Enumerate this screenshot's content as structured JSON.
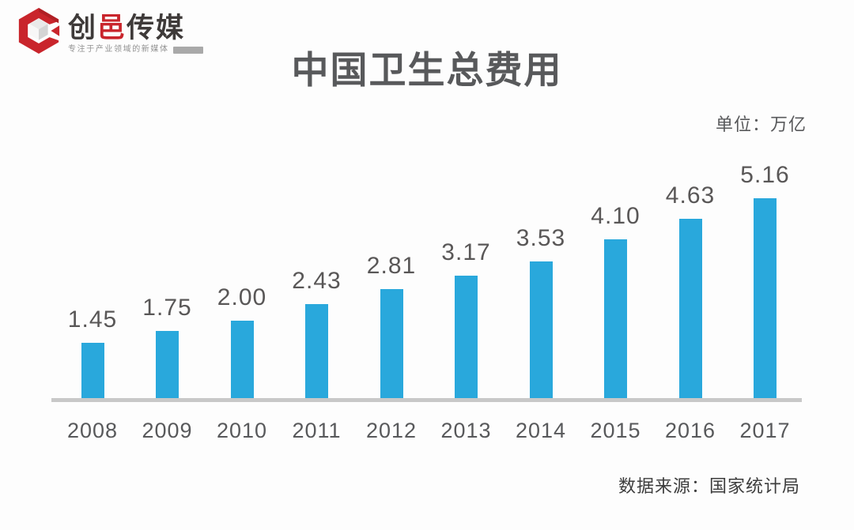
{
  "header": {
    "logo": {
      "part1": "创",
      "part2": "邑",
      "part3": "传媒",
      "accent_color": "#c9252c",
      "text_color": "#3e3a39",
      "tagline": "专注于产业领域的新媒体"
    },
    "title": "中国卫生总费用",
    "unit_label": "单位：万亿"
  },
  "chart_data": {
    "type": "bar",
    "title": "中国卫生总费用",
    "unit": "万亿",
    "categories": [
      "2008",
      "2009",
      "2010",
      "2011",
      "2012",
      "2013",
      "2014",
      "2015",
      "2016",
      "2017"
    ],
    "values": [
      1.45,
      1.75,
      2.0,
      2.43,
      2.81,
      3.17,
      3.53,
      4.1,
      4.63,
      5.16
    ],
    "value_labels": [
      "1.45",
      "1.75",
      "2.00",
      "2.43",
      "2.81",
      "3.17",
      "3.53",
      "4.10",
      "4.63",
      "5.16"
    ],
    "bar_color": "#29a8dc",
    "value_label_color": "#595757",
    "axis_color": "#c8c8c8",
    "ylim": [
      0,
      5.6
    ],
    "grid": false,
    "legend": "none"
  },
  "footer": {
    "source": "数据来源：国家统计局"
  }
}
